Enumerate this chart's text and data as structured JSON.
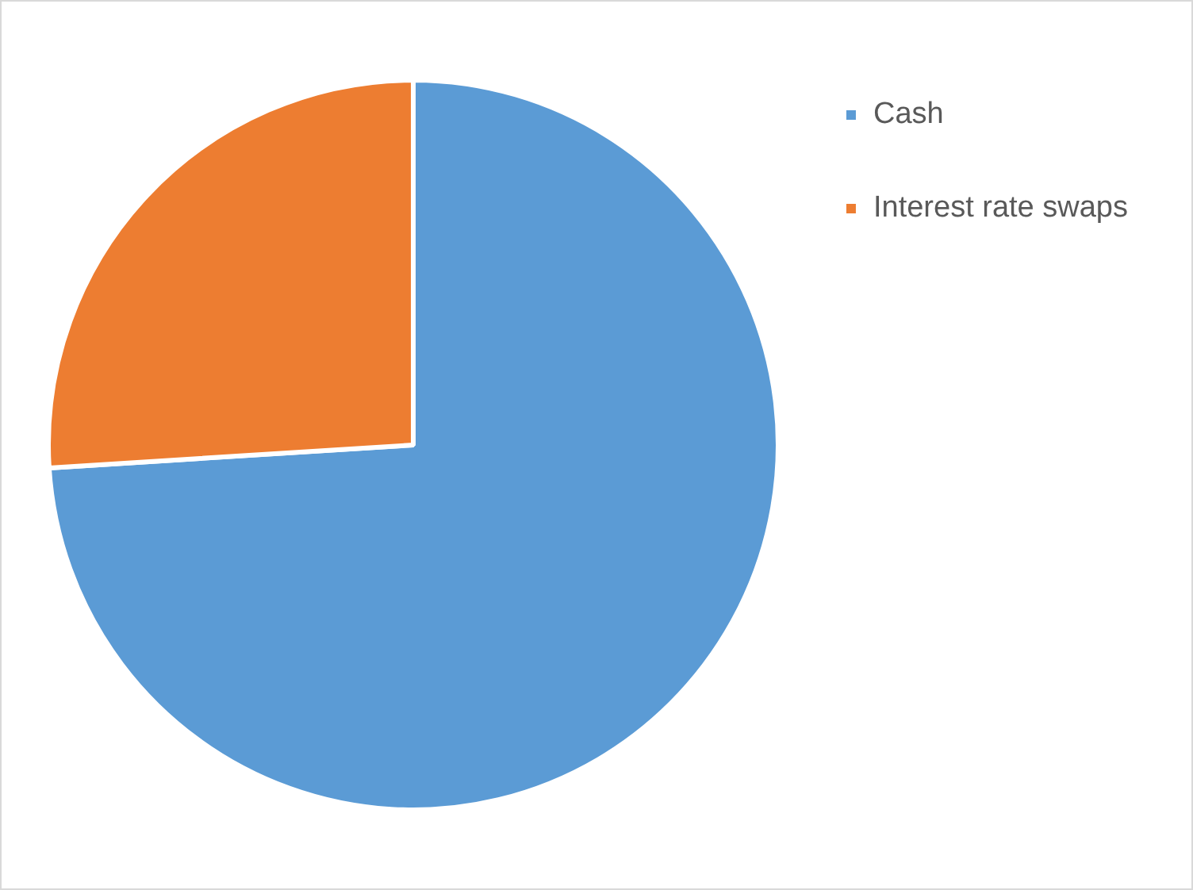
{
  "chart_data": {
    "type": "pie",
    "categories": [
      "Cash",
      "Interest rate swaps"
    ],
    "values": [
      74,
      26
    ],
    "colors": [
      "#5b9bd5",
      "#ed7d31"
    ],
    "legend": "top right"
  }
}
